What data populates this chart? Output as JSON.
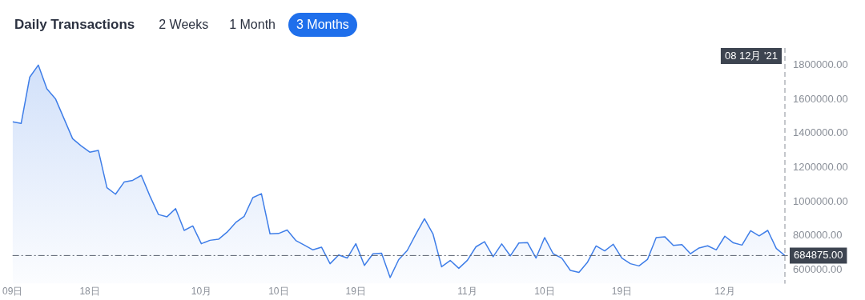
{
  "chart_data": {
    "type": "area",
    "title": "Daily Transactions",
    "annotations": [
      "2 Weeks",
      "1 Month",
      "3 Months"
    ],
    "x": [
      "2021-09-09",
      "2021-09-10",
      "2021-09-11",
      "2021-09-12",
      "2021-09-13",
      "2021-09-14",
      "2021-09-15",
      "2021-09-16",
      "2021-09-17",
      "2021-09-18",
      "2021-09-19",
      "2021-09-20",
      "2021-09-21",
      "2021-09-22",
      "2021-09-23",
      "2021-09-24",
      "2021-09-25",
      "2021-09-26",
      "2021-09-27",
      "2021-09-28",
      "2021-09-29",
      "2021-09-30",
      "2021-10-01",
      "2021-10-02",
      "2021-10-03",
      "2021-10-04",
      "2021-10-05",
      "2021-10-06",
      "2021-10-07",
      "2021-10-08",
      "2021-10-09",
      "2021-10-10",
      "2021-10-11",
      "2021-10-12",
      "2021-10-13",
      "2021-10-14",
      "2021-10-15",
      "2021-10-16",
      "2021-10-17",
      "2021-10-18",
      "2021-10-19",
      "2021-10-20",
      "2021-10-21",
      "2021-10-22",
      "2021-10-23",
      "2021-10-24",
      "2021-10-25",
      "2021-10-26",
      "2021-10-27",
      "2021-10-28",
      "2021-10-29",
      "2021-10-30",
      "2021-10-31",
      "2021-11-01",
      "2021-11-02",
      "2021-11-03",
      "2021-11-04",
      "2021-11-05",
      "2021-11-06",
      "2021-11-07",
      "2021-11-08",
      "2021-11-09",
      "2021-11-10",
      "2021-11-11",
      "2021-11-12",
      "2021-11-13",
      "2021-11-14",
      "2021-11-15",
      "2021-11-16",
      "2021-11-17",
      "2021-11-18",
      "2021-11-19",
      "2021-11-20",
      "2021-11-21",
      "2021-11-22",
      "2021-11-23",
      "2021-11-24",
      "2021-11-25",
      "2021-11-26",
      "2021-11-27",
      "2021-11-28",
      "2021-11-29",
      "2021-11-30",
      "2021-12-01",
      "2021-12-02",
      "2021-12-03",
      "2021-12-04",
      "2021-12-05",
      "2021-12-06",
      "2021-12-07",
      "2021-12-08"
    ],
    "series": [
      {
        "color": "#3f7ee8",
        "values": [
          1468000,
          1458000,
          1729000,
          1800000,
          1661000,
          1603000,
          1486000,
          1369000,
          1327000,
          1290000,
          1300000,
          1082000,
          1044000,
          1115000,
          1125000,
          1154000,
          1034000,
          925000,
          912000,
          960000,
          832000,
          858000,
          754000,
          774000,
          780000,
          822000,
          878000,
          915000,
          1024000,
          1047000,
          812000,
          814000,
          834000,
          773000,
          746000,
          718000,
          734000,
          637000,
          688000,
          670000,
          754000,
          627000,
          695000,
          698000,
          556000,
          661000,
          715000,
          810000,
          900000,
          810000,
          619000,
          656000,
          610000,
          657000,
          736000,
          766000,
          678000,
          753000,
          683000,
          758000,
          761000,
          670000,
          790000,
          695000,
          670000,
          598000,
          586000,
          646000,
          741000,
          712000,
          751000,
          670000,
          637000,
          624000,
          663000,
          790000,
          795000,
          744000,
          749000,
          695000,
          729000,
          742000,
          718000,
          798000,
          759000,
          746000,
          830000,
          800000,
          832000,
          726000,
          684875
        ]
      }
    ],
    "xlim": [
      "2021-09-09",
      "2021-12-08"
    ],
    "xticks": [
      {
        "value": "2021-09-09",
        "label": "09日"
      },
      {
        "value": "2021-09-18",
        "label": "18日"
      },
      {
        "value": "2021-10-01",
        "label": "10月"
      },
      {
        "value": "2021-10-10",
        "label": "10日"
      },
      {
        "value": "2021-10-19",
        "label": "19日"
      },
      {
        "value": "2021-11-01",
        "label": "11月"
      },
      {
        "value": "2021-11-10",
        "label": "10日"
      },
      {
        "value": "2021-11-19",
        "label": "19日"
      },
      {
        "value": "2021-12-01",
        "label": "12月"
      }
    ],
    "ylim": [
      520000,
      1900000
    ],
    "yticks": [
      {
        "value": 600000,
        "label": "600000.00"
      },
      {
        "value": 800000,
        "label": "800000.00"
      },
      {
        "value": 1000000,
        "label": "1000000.00"
      },
      {
        "value": 1200000,
        "label": "1200000.00"
      },
      {
        "value": 1400000,
        "label": "1400000.00"
      },
      {
        "value": 1600000,
        "label": "1600000.00"
      },
      {
        "value": 1800000,
        "label": "1800000.00"
      }
    ],
    "ref_lines": [
      {
        "axis": "y",
        "value": 684875,
        "label": "684875.00",
        "color": "#5a6270",
        "line_style": "dashdot"
      },
      {
        "axis": "x",
        "value": "2021-12-08",
        "label": "08 12月 '21",
        "color": "#8a8f98",
        "line_style": "dashed"
      }
    ],
    "grid": false,
    "legend": false,
    "marker": "none",
    "line_style": "solid"
  }
}
